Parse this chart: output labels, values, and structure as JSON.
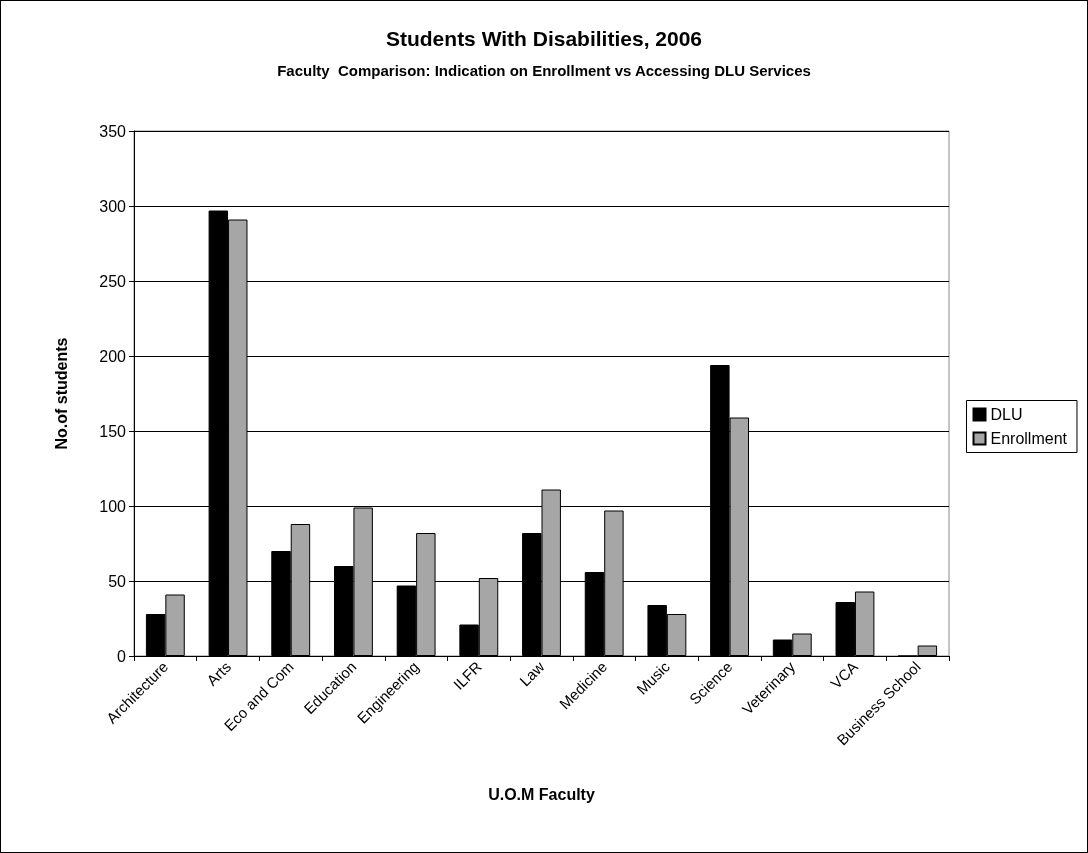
{
  "chart_data": {
    "type": "bar",
    "title": "Students With Disabilities, 2006",
    "subtitle": "Faculty  Comparison: Indication on Enrollment vs Accessing DLU Services",
    "xlabel": "U.O.M Faculty",
    "ylabel": "No.of students",
    "categories": [
      "Architecture",
      "Arts",
      "Eco and Com",
      "Education",
      "Engineering",
      "ILFR",
      "Law",
      "Medicine",
      "Music",
      "Science",
      "Veterinary",
      "VCA",
      "Business School"
    ],
    "series": [
      {
        "name": "DLU",
        "color": "#000000",
        "values": [
          28,
          297,
          70,
          60,
          47,
          21,
          82,
          56,
          34,
          194,
          11,
          36,
          0
        ]
      },
      {
        "name": "Enrollment",
        "color": "#a6a6a6",
        "values": [
          41,
          291,
          88,
          99,
          82,
          52,
          111,
          97,
          28,
          159,
          15,
          43,
          7
        ]
      }
    ],
    "ylim": [
      0,
      350
    ],
    "yticks": [
      0,
      50,
      100,
      150,
      200,
      250,
      300,
      350
    ],
    "grid": "y",
    "legend": "right"
  }
}
